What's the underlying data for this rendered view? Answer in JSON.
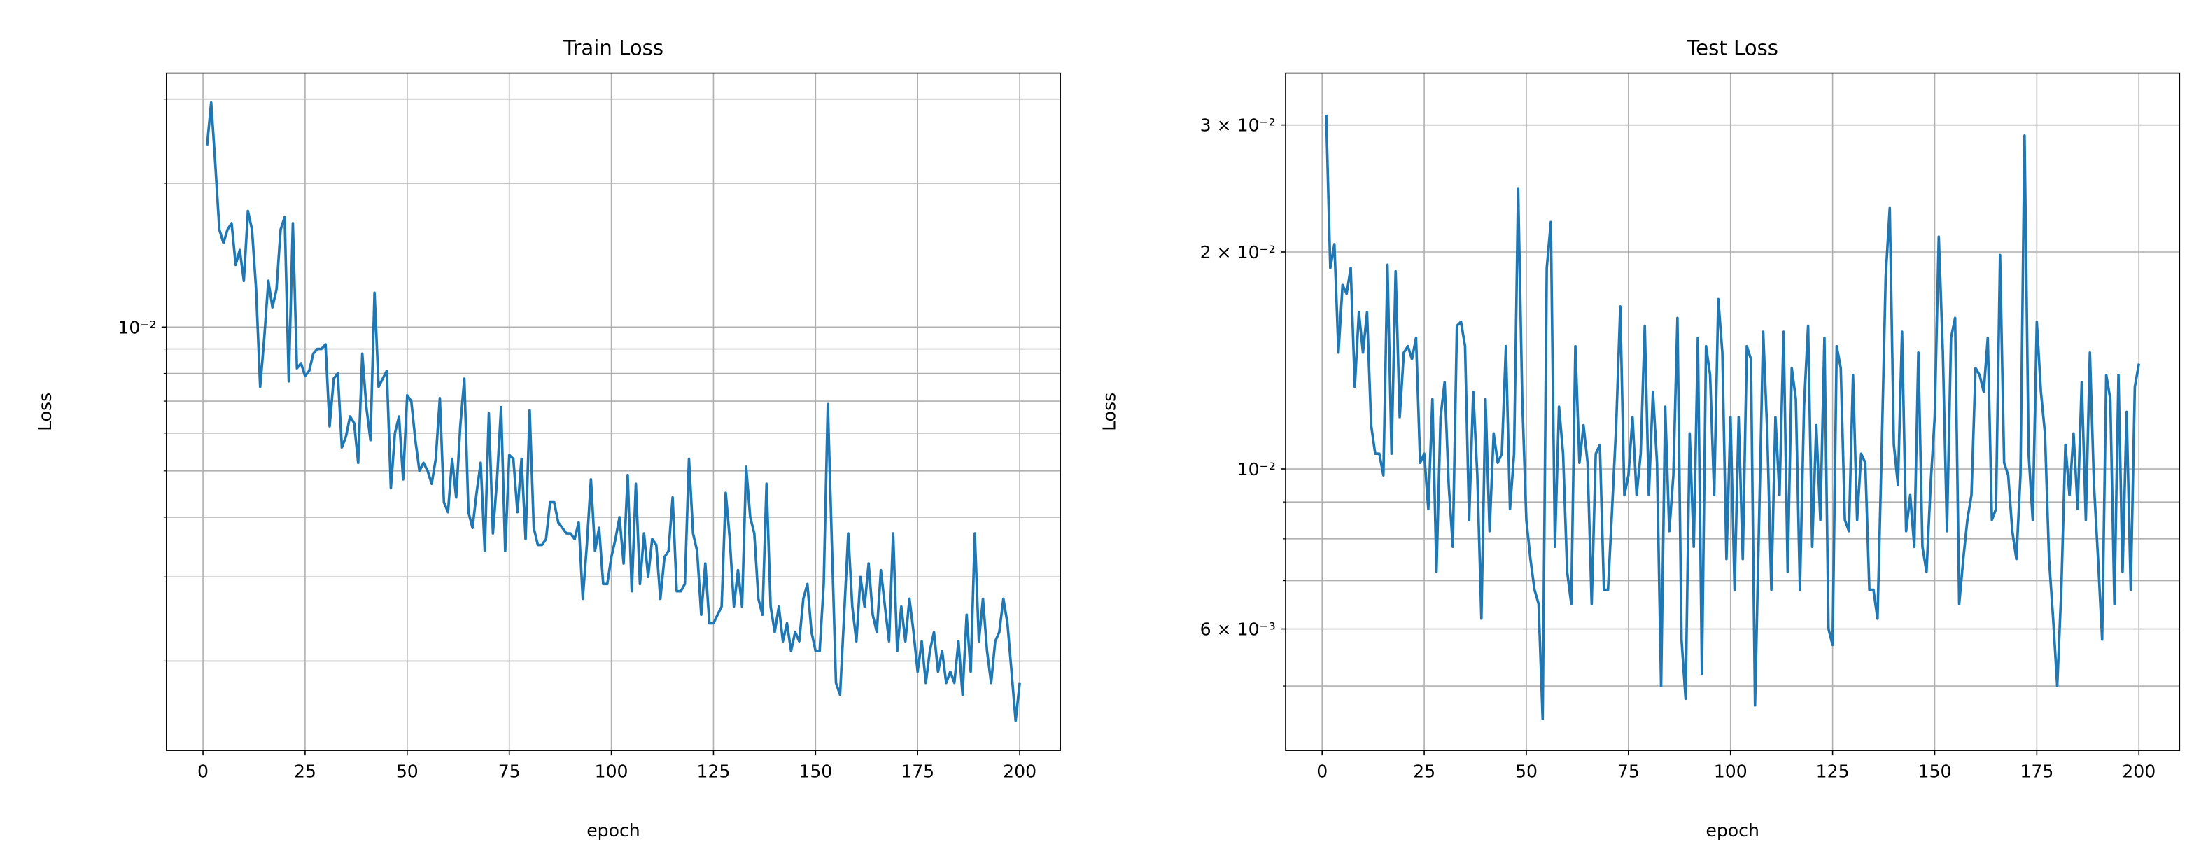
{
  "chart_data": [
    {
      "type": "line",
      "title": "Train Loss",
      "xlabel": "epoch",
      "ylabel": "Loss",
      "yscale": "log",
      "grid": true,
      "color": "#1f77b4",
      "xlim": [
        -8.95,
        209.95
      ],
      "xticks": [
        0,
        25,
        50,
        75,
        100,
        125,
        150,
        175,
        200
      ],
      "ylim": [
        0.0013,
        0.034
      ],
      "yticks": [
        {
          "value": 0.01,
          "label": "10⁻²"
        }
      ],
      "yminorticks": [
        0.002,
        0.003,
        0.004,
        0.005,
        0.006,
        0.007,
        0.008,
        0.009,
        0.02,
        0.03
      ],
      "x": [
        1,
        2,
        3,
        4,
        5,
        6,
        7,
        8,
        9,
        10,
        11,
        12,
        13,
        14,
        15,
        16,
        17,
        18,
        19,
        20,
        21,
        22,
        23,
        24,
        25,
        26,
        27,
        28,
        29,
        30,
        31,
        32,
        33,
        34,
        35,
        36,
        37,
        38,
        39,
        40,
        41,
        42,
        43,
        44,
        45,
        46,
        47,
        48,
        49,
        50,
        51,
        52,
        53,
        54,
        55,
        56,
        57,
        58,
        59,
        60,
        61,
        62,
        63,
        64,
        65,
        66,
        67,
        68,
        69,
        70,
        71,
        72,
        73,
        74,
        75,
        76,
        77,
        78,
        79,
        80,
        81,
        82,
        83,
        84,
        85,
        86,
        87,
        88,
        89,
        90,
        91,
        92,
        93,
        94,
        95,
        96,
        97,
        98,
        99,
        100,
        101,
        102,
        103,
        104,
        105,
        106,
        107,
        108,
        109,
        110,
        111,
        112,
        113,
        114,
        115,
        116,
        117,
        118,
        119,
        120,
        121,
        122,
        123,
        124,
        125,
        126,
        127,
        128,
        129,
        130,
        131,
        132,
        133,
        134,
        135,
        136,
        137,
        138,
        139,
        140,
        141,
        142,
        143,
        144,
        145,
        146,
        147,
        148,
        149,
        150,
        151,
        152,
        153,
        154,
        155,
        156,
        157,
        158,
        159,
        160,
        161,
        162,
        163,
        164,
        165,
        166,
        167,
        168,
        169,
        170,
        171,
        172,
        173,
        174,
        175,
        176,
        177,
        178,
        179,
        180,
        181,
        182,
        183,
        184,
        185,
        186,
        187,
        188,
        189,
        190,
        191,
        192,
        193,
        194,
        195,
        196,
        197,
        198,
        199,
        200
      ],
      "values": [
        0.024,
        0.0295,
        0.022,
        0.016,
        0.015,
        0.016,
        0.0165,
        0.0135,
        0.0145,
        0.0125,
        0.0175,
        0.016,
        0.012,
        0.0075,
        0.0095,
        0.0125,
        0.011,
        0.012,
        0.016,
        0.017,
        0.0077,
        0.0165,
        0.0082,
        0.0084,
        0.0079,
        0.0081,
        0.0088,
        0.009,
        0.009,
        0.0092,
        0.0062,
        0.0078,
        0.008,
        0.0056,
        0.0059,
        0.0065,
        0.0063,
        0.0052,
        0.0088,
        0.0068,
        0.0058,
        0.0118,
        0.0075,
        0.0078,
        0.0081,
        0.0046,
        0.006,
        0.0065,
        0.0048,
        0.0072,
        0.007,
        0.0058,
        0.005,
        0.0052,
        0.005,
        0.0047,
        0.0053,
        0.0071,
        0.0043,
        0.0041,
        0.0053,
        0.0044,
        0.0062,
        0.0078,
        0.0041,
        0.0038,
        0.0045,
        0.0052,
        0.0034,
        0.0066,
        0.0037,
        0.0048,
        0.0068,
        0.0034,
        0.0054,
        0.0053,
        0.0041,
        0.0053,
        0.0036,
        0.0067,
        0.0038,
        0.0035,
        0.0035,
        0.0036,
        0.0043,
        0.0043,
        0.0039,
        0.0038,
        0.0037,
        0.0037,
        0.0036,
        0.0039,
        0.0027,
        0.0035,
        0.0048,
        0.0034,
        0.0038,
        0.0029,
        0.0029,
        0.0033,
        0.0036,
        0.004,
        0.0032,
        0.0049,
        0.0028,
        0.0047,
        0.0029,
        0.0037,
        0.003,
        0.0036,
        0.0035,
        0.0027,
        0.0033,
        0.0034,
        0.0044,
        0.0028,
        0.0028,
        0.0029,
        0.0053,
        0.0037,
        0.0034,
        0.0025,
        0.0032,
        0.0024,
        0.0024,
        0.0025,
        0.0026,
        0.0045,
        0.0036,
        0.0026,
        0.0031,
        0.0026,
        0.0051,
        0.004,
        0.0037,
        0.0027,
        0.0025,
        0.0047,
        0.0026,
        0.0023,
        0.0026,
        0.0022,
        0.0024,
        0.0021,
        0.0023,
        0.0022,
        0.0027,
        0.0029,
        0.0023,
        0.0021,
        0.0021,
        0.0029,
        0.0069,
        0.0035,
        0.0018,
        0.0017,
        0.0025,
        0.0037,
        0.0026,
        0.0022,
        0.003,
        0.0026,
        0.0032,
        0.0025,
        0.0023,
        0.0031,
        0.0026,
        0.0022,
        0.0037,
        0.0021,
        0.0026,
        0.0022,
        0.0027,
        0.0023,
        0.0019,
        0.0022,
        0.0018,
        0.0021,
        0.0023,
        0.0019,
        0.0021,
        0.0018,
        0.0019,
        0.0018,
        0.0022,
        0.0017,
        0.0025,
        0.0019,
        0.0037,
        0.0022,
        0.0027,
        0.0021,
        0.0018,
        0.0022,
        0.0023,
        0.0027,
        0.0024,
        0.0019,
        0.0015,
        0.0018
      ]
    },
    {
      "type": "line",
      "title": "Test Loss",
      "xlabel": "epoch",
      "ylabel": "Loss",
      "yscale": "log",
      "grid": true,
      "color": "#1f77b4",
      "xlim": [
        -8.95,
        209.95
      ],
      "xticks": [
        0,
        25,
        50,
        75,
        100,
        125,
        150,
        175,
        200
      ],
      "ylim": [
        0.00407,
        0.0354
      ],
      "yticks": [
        {
          "value": 0.006,
          "label": "6 × 10⁻³"
        },
        {
          "value": 0.01,
          "label": "10⁻²"
        },
        {
          "value": 0.02,
          "label": "2 × 10⁻²"
        },
        {
          "value": 0.03,
          "label": "3 × 10⁻²"
        }
      ],
      "yminorticks": [
        0.005,
        0.007,
        0.008,
        0.009
      ],
      "x": [
        1,
        2,
        3,
        4,
        5,
        6,
        7,
        8,
        9,
        10,
        11,
        12,
        13,
        14,
        15,
        16,
        17,
        18,
        19,
        20,
        21,
        22,
        23,
        24,
        25,
        26,
        27,
        28,
        29,
        30,
        31,
        32,
        33,
        34,
        35,
        36,
        37,
        38,
        39,
        40,
        41,
        42,
        43,
        44,
        45,
        46,
        47,
        48,
        49,
        50,
        51,
        52,
        53,
        54,
        55,
        56,
        57,
        58,
        59,
        60,
        61,
        62,
        63,
        64,
        65,
        66,
        67,
        68,
        69,
        70,
        71,
        72,
        73,
        74,
        75,
        76,
        77,
        78,
        79,
        80,
        81,
        82,
        83,
        84,
        85,
        86,
        87,
        88,
        89,
        90,
        91,
        92,
        93,
        94,
        95,
        96,
        97,
        98,
        99,
        100,
        101,
        102,
        103,
        104,
        105,
        106,
        107,
        108,
        109,
        110,
        111,
        112,
        113,
        114,
        115,
        116,
        117,
        118,
        119,
        120,
        121,
        122,
        123,
        124,
        125,
        126,
        127,
        128,
        129,
        130,
        131,
        132,
        133,
        134,
        135,
        136,
        137,
        138,
        139,
        140,
        141,
        142,
        143,
        144,
        145,
        146,
        147,
        148,
        149,
        150,
        151,
        152,
        153,
        154,
        155,
        156,
        157,
        158,
        159,
        160,
        161,
        162,
        163,
        164,
        165,
        166,
        167,
        168,
        169,
        170,
        171,
        172,
        173,
        174,
        175,
        176,
        177,
        178,
        179,
        180,
        181,
        182,
        183,
        184,
        185,
        186,
        187,
        188,
        189,
        190,
        191,
        192,
        193,
        194,
        195,
        196,
        197,
        198,
        199,
        200
      ],
      "values": [
        0.031,
        0.019,
        0.0205,
        0.0145,
        0.018,
        0.0175,
        0.019,
        0.013,
        0.0165,
        0.0145,
        0.0165,
        0.0115,
        0.0105,
        0.0105,
        0.0098,
        0.0192,
        0.0105,
        0.0188,
        0.0118,
        0.0145,
        0.0148,
        0.0142,
        0.0152,
        0.0102,
        0.0105,
        0.0088,
        0.0125,
        0.0072,
        0.0118,
        0.0132,
        0.0095,
        0.0078,
        0.0158,
        0.016,
        0.0148,
        0.0085,
        0.0128,
        0.0098,
        0.0062,
        0.0125,
        0.0082,
        0.0112,
        0.0102,
        0.0105,
        0.0148,
        0.0088,
        0.0105,
        0.0245,
        0.0125,
        0.0085,
        0.0075,
        0.0068,
        0.0065,
        0.0045,
        0.019,
        0.022,
        0.0078,
        0.0122,
        0.0105,
        0.0072,
        0.0065,
        0.0148,
        0.0102,
        0.0115,
        0.0102,
        0.0065,
        0.0105,
        0.0108,
        0.0068,
        0.0068,
        0.0088,
        0.0115,
        0.0168,
        0.0092,
        0.0098,
        0.0118,
        0.0092,
        0.0105,
        0.0158,
        0.0092,
        0.0128,
        0.0102,
        0.005,
        0.0122,
        0.0082,
        0.0098,
        0.0162,
        0.0058,
        0.0048,
        0.0112,
        0.0078,
        0.0152,
        0.0052,
        0.0148,
        0.0135,
        0.0092,
        0.0172,
        0.0145,
        0.0075,
        0.0118,
        0.0068,
        0.0118,
        0.0075,
        0.0148,
        0.0142,
        0.0047,
        0.0085,
        0.0155,
        0.0112,
        0.0068,
        0.0118,
        0.0092,
        0.0155,
        0.0072,
        0.0138,
        0.0125,
        0.0068,
        0.0122,
        0.0158,
        0.0078,
        0.0115,
        0.0085,
        0.0152,
        0.006,
        0.0057,
        0.0148,
        0.0138,
        0.0085,
        0.0082,
        0.0135,
        0.0085,
        0.0105,
        0.0102,
        0.0068,
        0.0068,
        0.0062,
        0.0105,
        0.0185,
        0.023,
        0.0108,
        0.0095,
        0.0155,
        0.0082,
        0.0092,
        0.0078,
        0.0145,
        0.0078,
        0.0072,
        0.0095,
        0.0118,
        0.021,
        0.0145,
        0.0082,
        0.0152,
        0.0162,
        0.0065,
        0.0075,
        0.0085,
        0.0092,
        0.0138,
        0.0135,
        0.0128,
        0.0152,
        0.0085,
        0.0088,
        0.0198,
        0.0102,
        0.0098,
        0.0082,
        0.0075,
        0.0098,
        0.029,
        0.0105,
        0.0085,
        0.016,
        0.0128,
        0.0112,
        0.0075,
        0.0062,
        0.005,
        0.0068,
        0.0108,
        0.0092,
        0.0112,
        0.0088,
        0.0132,
        0.0085,
        0.0145,
        0.0095,
        0.0075,
        0.0058,
        0.0135,
        0.0125,
        0.0065,
        0.0135,
        0.0072,
        0.012,
        0.0068,
        0.013,
        0.014
      ]
    }
  ]
}
